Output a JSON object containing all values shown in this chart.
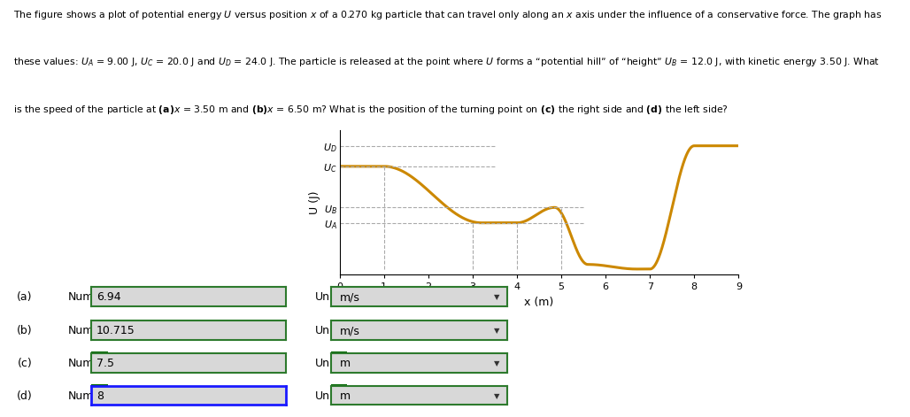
{
  "UA": 9.0,
  "UB": 12.0,
  "UC": 20.0,
  "UD": 24.0,
  "curve_color": "#CC8800",
  "dashed_color": "#AAAAAA",
  "bg_color": "#ffffff",
  "xlabel": "x (m)",
  "ylabel": "U (J)",
  "xlim": [
    0,
    9
  ],
  "answers": [
    {
      "label": "(a)",
      "number": "6.94",
      "units": "m/s",
      "correct": true,
      "highlighted": false
    },
    {
      "label": "(b)",
      "number": "10.715",
      "units": "m/s",
      "correct": true,
      "highlighted": false
    },
    {
      "label": "(c)",
      "number": "7.5",
      "units": "m",
      "correct": true,
      "highlighted": false
    },
    {
      "label": "(d)",
      "number": "8",
      "units": "m",
      "correct": false,
      "highlighted": true
    }
  ]
}
